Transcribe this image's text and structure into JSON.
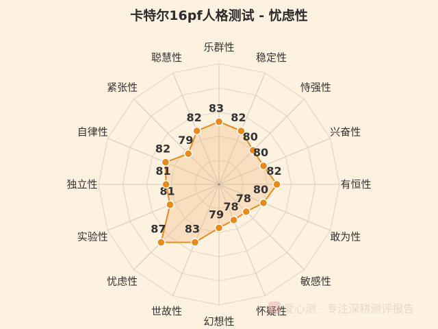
{
  "chart_data": {
    "type": "radar",
    "title": "卡特尔16pf人格测试 - 忧虑性",
    "categories": [
      "乐群性",
      "稳定性",
      "恃强性",
      "兴奋性",
      "有恒性",
      "敢为性",
      "敏感性",
      "怀疑性",
      "幻想性",
      "世故性",
      "忧虑性",
      "实验性",
      "独立性",
      "自律性",
      "紧张性",
      "聪慧性"
    ],
    "values": [
      83,
      82,
      80,
      80,
      82,
      80,
      78,
      78,
      79,
      83,
      87,
      81,
      81,
      82,
      79,
      82
    ],
    "rlim": [
      70,
      95
    ],
    "grid": true,
    "colors": {
      "line": "#e88a1a",
      "fill": "rgba(240,170,90,0.25)",
      "point": "#e88a1a",
      "grid": "#d9d2c8",
      "background": "#fdf1e0"
    }
  },
  "watermark": "爱心测 · 专注深耕测评报告"
}
